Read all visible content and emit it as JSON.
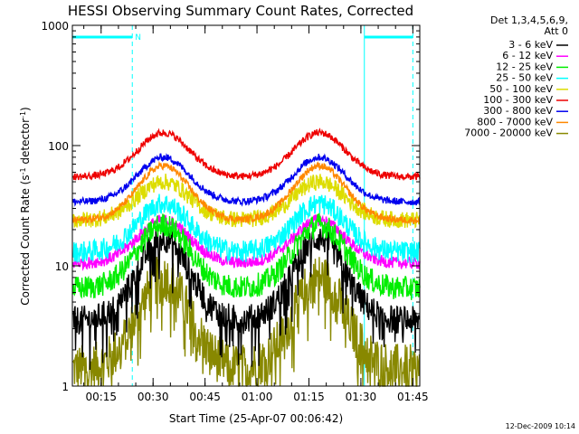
{
  "chart_data": {
    "type": "line",
    "title": "HESSI Observing Summary Count Rates, Corrected",
    "xlabel": "Start Time (25-Apr-07 00:06:42)",
    "ylabel_main": "Corrected Count Rate (s",
    "ylabel_exp1": "-1",
    "ylabel_mid": " detector",
    "ylabel_exp2": "-1",
    "ylabel_end": ")",
    "y_scale": "log",
    "ylim": [
      1,
      1000
    ],
    "xlim_minutes": [
      6.7,
      107
    ],
    "x_ticks": [
      {
        "t": 15,
        "label": "00:15"
      },
      {
        "t": 30,
        "label": "00:30"
      },
      {
        "t": 45,
        "label": "00:45"
      },
      {
        "t": 60,
        "label": "01:00"
      },
      {
        "t": 75,
        "label": "01:15"
      },
      {
        "t": 90,
        "label": "01:30"
      },
      {
        "t": 105,
        "label": "01:45"
      }
    ],
    "y_ticks": [
      {
        "v": 1,
        "label": "1"
      },
      {
        "v": 10,
        "label": "10"
      },
      {
        "v": 100,
        "label": "100"
      },
      {
        "v": 1000,
        "label": "1000"
      }
    ],
    "legend_header": [
      "Det 1,3,4,5,6,9,",
      "Att 0"
    ],
    "legend_position": "outside-right",
    "series": [
      {
        "name": "3 - 6 keV",
        "color": "#000000",
        "base": 3.5,
        "peak": 17,
        "noise": 0.12,
        "dips": true
      },
      {
        "name": "6 - 12 keV",
        "color": "#ff00ff",
        "base": 10.5,
        "peak": 24,
        "noise": 0.05,
        "dips": false
      },
      {
        "name": "12 - 25 keV",
        "color": "#00ee00",
        "base": 6.5,
        "peak": 22,
        "noise": 0.1,
        "dips": false
      },
      {
        "name": "25 - 50 keV",
        "color": "#00ffff",
        "base": 13,
        "peak": 33,
        "noise": 0.09,
        "dips": false
      },
      {
        "name": "50 - 100 keV",
        "color": "#dddd00",
        "base": 24,
        "peak": 50,
        "noise": 0.07,
        "dips": false
      },
      {
        "name": "100 - 300 keV",
        "color": "#ee0000",
        "base": 55,
        "peak": 128,
        "noise": 0.03,
        "dips": false
      },
      {
        "name": "300 - 800 keV",
        "color": "#0000ee",
        "base": 34,
        "peak": 80,
        "noise": 0.03,
        "dips": false
      },
      {
        "name": "800 - 7000 keV",
        "color": "#ff8800",
        "base": 24,
        "peak": 68,
        "noise": 0.03,
        "dips": false
      },
      {
        "name": "7000 - 20000 keV",
        "color": "#888800",
        "base": 1.4,
        "peak": 8,
        "noise": 0.2,
        "dips": true
      }
    ],
    "peaks_minutes": [
      33,
      78
    ],
    "shaded_markers": [
      {
        "t": 6.7,
        "style": "solid"
      },
      {
        "t": 24,
        "style": "dashed"
      },
      {
        "t": 91,
        "style": "solid"
      },
      {
        "t": 105,
        "style": "dashed"
      }
    ],
    "night_bars": [
      {
        "start": 6.7,
        "end": 24,
        "label": "N"
      },
      {
        "start": 91,
        "end": 105,
        "label": ""
      }
    ],
    "marker_color": "#00ffff"
  },
  "footer_date": "12-Dec-2009 10:14"
}
